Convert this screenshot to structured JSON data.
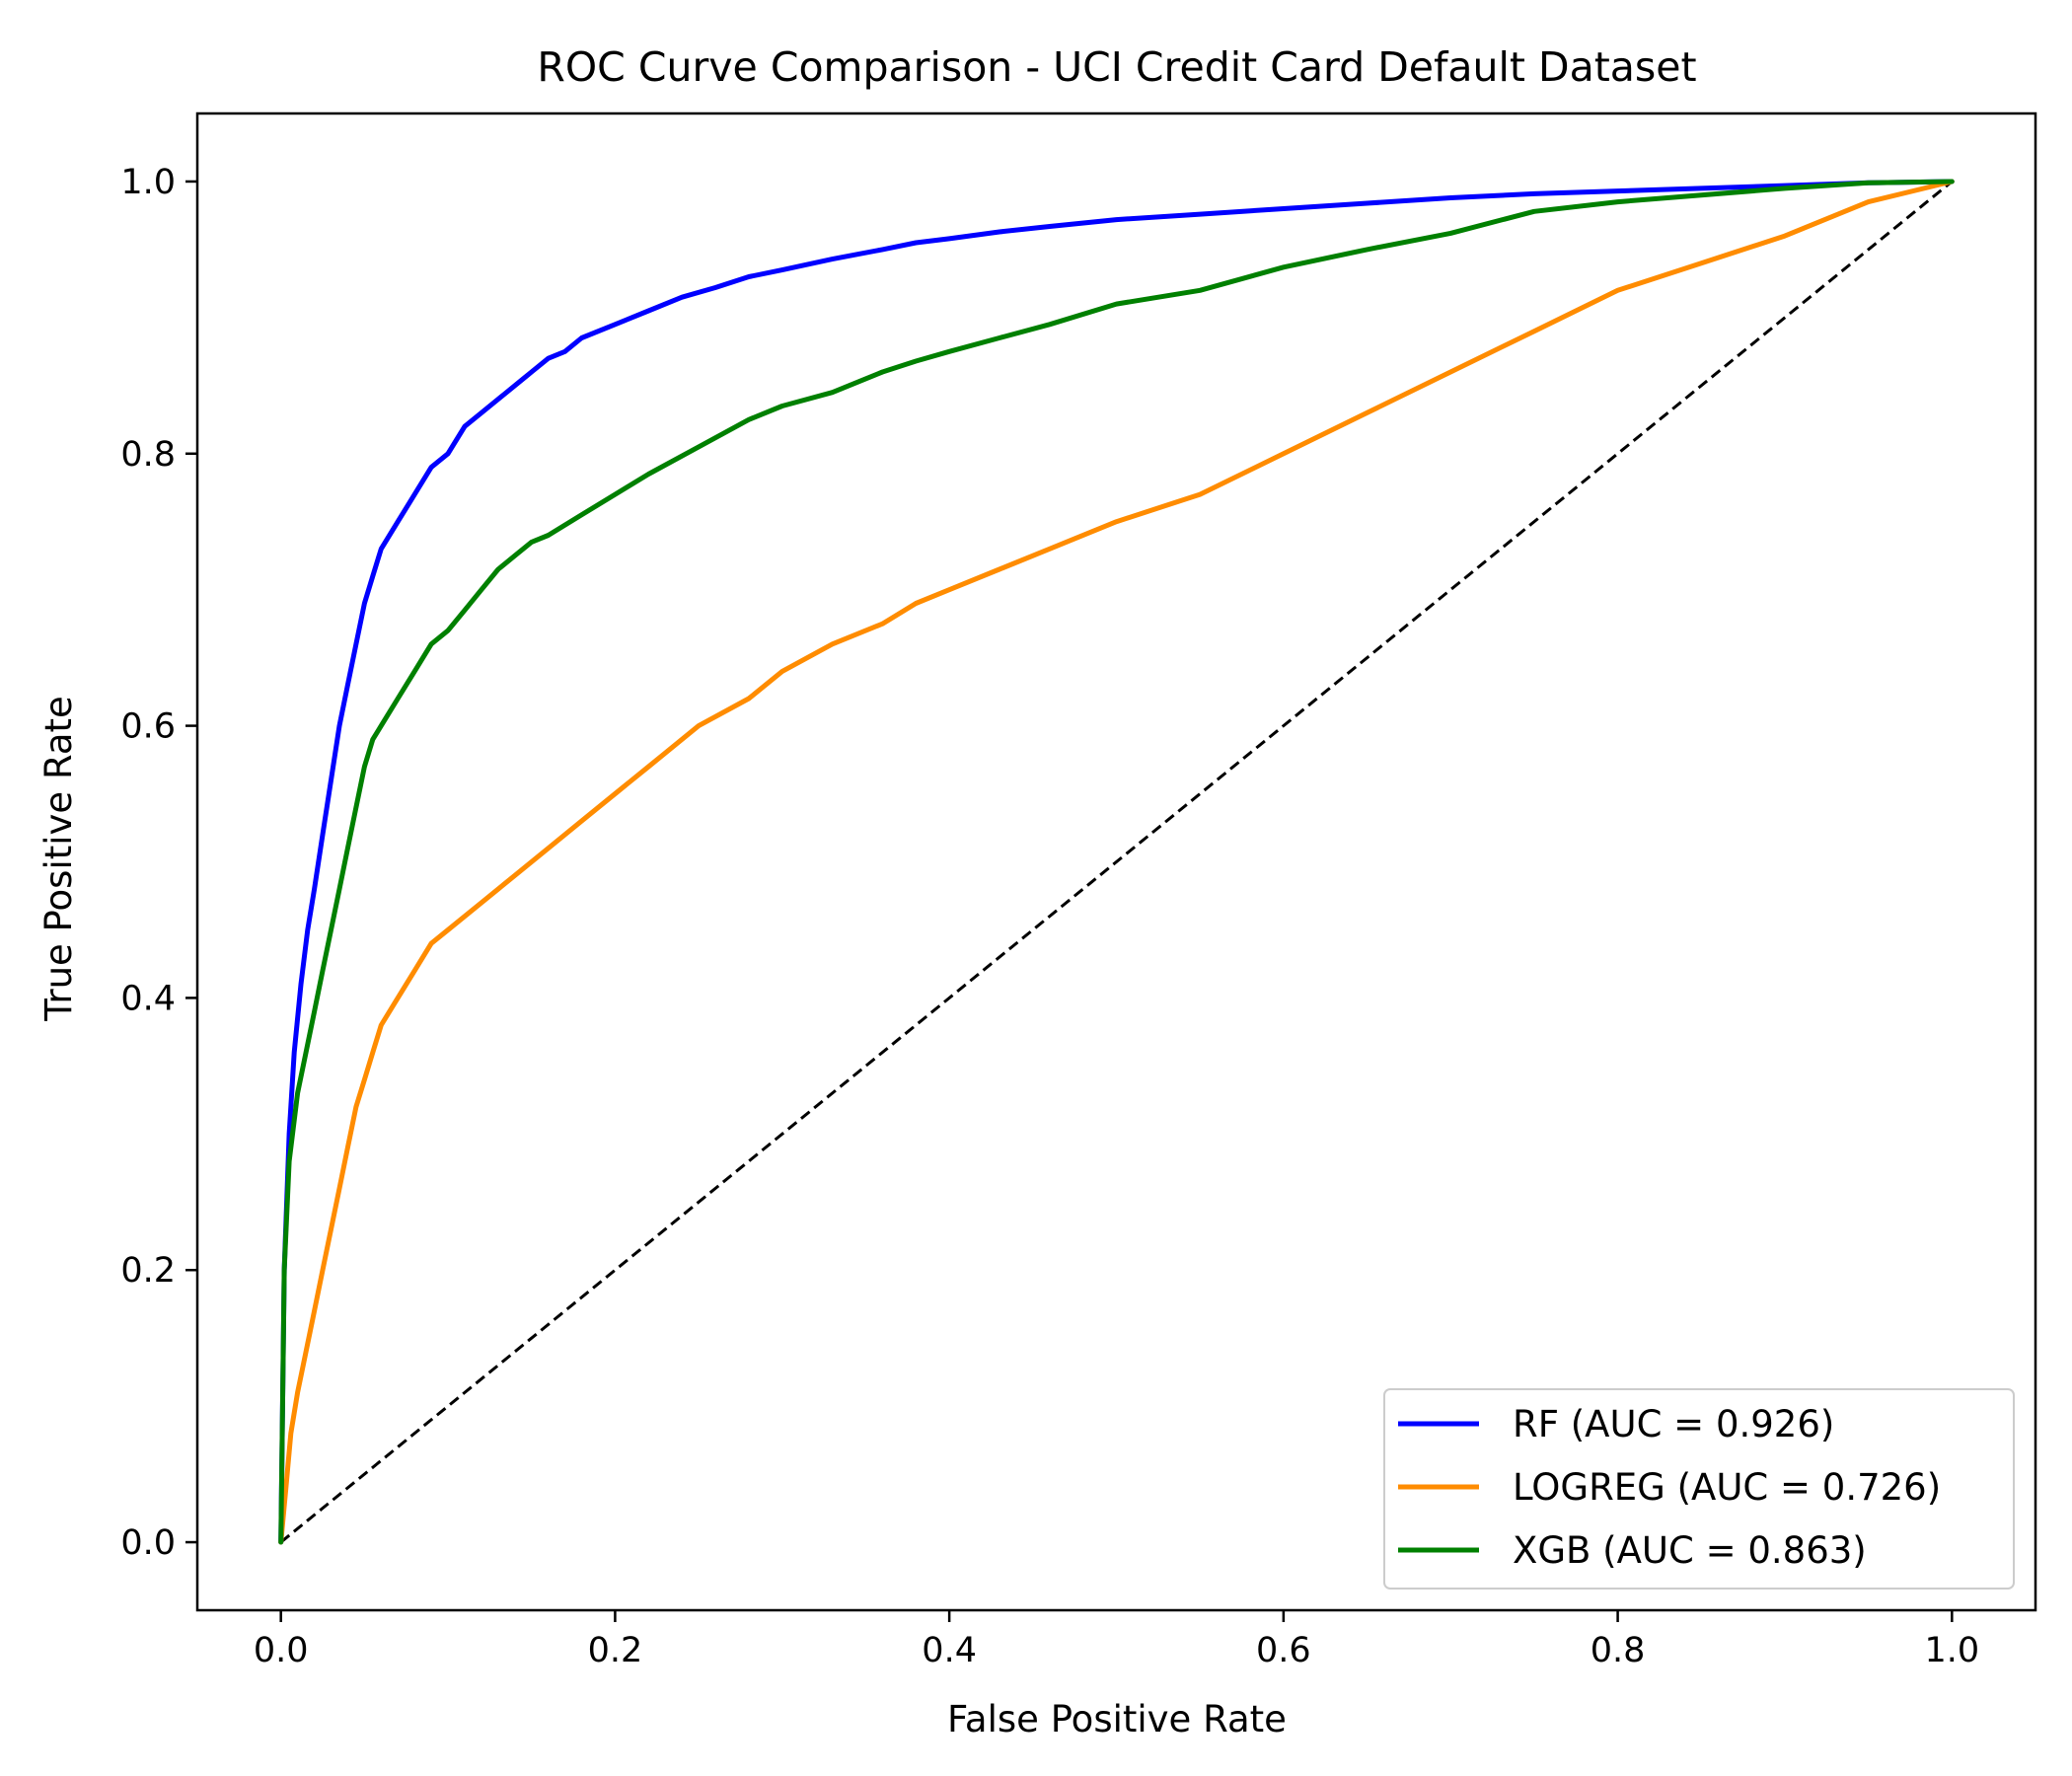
{
  "chart_data": {
    "type": "line",
    "title": "ROC Curve Comparison - UCI Credit Card Default Dataset",
    "xlabel": "False Positive Rate",
    "ylabel": "True Positive Rate",
    "xlim": [
      -0.05,
      1.05
    ],
    "ylim": [
      -0.05,
      1.05
    ],
    "xticks": [
      0.0,
      0.2,
      0.4,
      0.6,
      0.8,
      1.0
    ],
    "yticks": [
      0.0,
      0.2,
      0.4,
      0.6,
      0.8,
      1.0
    ],
    "xtick_labels": [
      "0.0",
      "0.2",
      "0.4",
      "0.6",
      "0.8",
      "1.0"
    ],
    "ytick_labels": [
      "0.0",
      "0.2",
      "0.4",
      "0.6",
      "0.8",
      "1.0"
    ],
    "grid": false,
    "legend_position": "lower-right",
    "series": [
      {
        "name": "RF",
        "label": "RF (AUC = 0.926)",
        "auc": 0.926,
        "color": "#0000ff",
        "x": [
          0.0,
          0.002,
          0.005,
          0.008,
          0.012,
          0.016,
          0.02,
          0.025,
          0.03,
          0.035,
          0.04,
          0.045,
          0.05,
          0.055,
          0.06,
          0.07,
          0.08,
          0.09,
          0.1,
          0.11,
          0.12,
          0.13,
          0.14,
          0.15,
          0.16,
          0.17,
          0.18,
          0.2,
          0.22,
          0.24,
          0.26,
          0.28,
          0.3,
          0.33,
          0.36,
          0.38,
          0.4,
          0.43,
          0.46,
          0.5,
          0.55,
          0.6,
          0.65,
          0.7,
          0.75,
          0.8,
          0.85,
          0.9,
          0.95,
          1.0
        ],
        "y": [
          0.0,
          0.2,
          0.3,
          0.36,
          0.41,
          0.45,
          0.48,
          0.52,
          0.56,
          0.6,
          0.63,
          0.66,
          0.69,
          0.71,
          0.73,
          0.75,
          0.77,
          0.79,
          0.8,
          0.82,
          0.83,
          0.84,
          0.85,
          0.86,
          0.87,
          0.875,
          0.885,
          0.895,
          0.905,
          0.915,
          0.922,
          0.93,
          0.935,
          0.943,
          0.95,
          0.955,
          0.958,
          0.963,
          0.967,
          0.972,
          0.976,
          0.98,
          0.984,
          0.988,
          0.991,
          0.993,
          0.995,
          0.997,
          0.999,
          1.0
        ]
      },
      {
        "name": "LOGREG",
        "label": "LOGREG (AUC = 0.726)",
        "auc": 0.726,
        "color": "#ff8c00",
        "x": [
          0.0,
          0.003,
          0.006,
          0.01,
          0.015,
          0.02,
          0.025,
          0.03,
          0.035,
          0.04,
          0.045,
          0.05,
          0.055,
          0.06,
          0.07,
          0.08,
          0.09,
          0.1,
          0.12,
          0.14,
          0.16,
          0.18,
          0.2,
          0.22,
          0.25,
          0.28,
          0.3,
          0.33,
          0.36,
          0.38,
          0.4,
          0.43,
          0.46,
          0.5,
          0.55,
          0.6,
          0.65,
          0.7,
          0.75,
          0.8,
          0.85,
          0.9,
          0.95,
          1.0
        ],
        "y": [
          0.0,
          0.04,
          0.08,
          0.11,
          0.14,
          0.17,
          0.2,
          0.23,
          0.26,
          0.29,
          0.32,
          0.34,
          0.36,
          0.38,
          0.4,
          0.42,
          0.44,
          0.45,
          0.47,
          0.49,
          0.51,
          0.53,
          0.55,
          0.57,
          0.6,
          0.62,
          0.64,
          0.66,
          0.675,
          0.69,
          0.7,
          0.715,
          0.73,
          0.75,
          0.77,
          0.8,
          0.83,
          0.86,
          0.89,
          0.92,
          0.94,
          0.96,
          0.985,
          1.0
        ]
      },
      {
        "name": "XGB",
        "label": "XGB (AUC = 0.863)",
        "auc": 0.863,
        "color": "#008000",
        "x": [
          0.0,
          0.002,
          0.005,
          0.01,
          0.015,
          0.02,
          0.025,
          0.03,
          0.035,
          0.04,
          0.045,
          0.05,
          0.055,
          0.06,
          0.07,
          0.08,
          0.09,
          0.1,
          0.11,
          0.12,
          0.13,
          0.14,
          0.15,
          0.16,
          0.18,
          0.2,
          0.22,
          0.25,
          0.28,
          0.3,
          0.33,
          0.36,
          0.38,
          0.4,
          0.43,
          0.46,
          0.5,
          0.55,
          0.6,
          0.65,
          0.7,
          0.75,
          0.8,
          0.85,
          0.9,
          0.95,
          1.0
        ],
        "y": [
          0.0,
          0.2,
          0.28,
          0.33,
          0.36,
          0.39,
          0.42,
          0.45,
          0.48,
          0.51,
          0.54,
          0.57,
          0.59,
          0.6,
          0.62,
          0.64,
          0.66,
          0.67,
          0.685,
          0.7,
          0.715,
          0.725,
          0.735,
          0.74,
          0.755,
          0.77,
          0.785,
          0.805,
          0.825,
          0.835,
          0.845,
          0.86,
          0.868,
          0.875,
          0.885,
          0.895,
          0.91,
          0.92,
          0.937,
          0.95,
          0.962,
          0.978,
          0.985,
          0.99,
          0.995,
          0.999,
          1.0
        ]
      }
    ],
    "reference_line": {
      "name": "chance",
      "x": [
        0.0,
        1.0
      ],
      "y": [
        0.0,
        1.0
      ],
      "color": "#000000",
      "style": "dashed"
    }
  }
}
